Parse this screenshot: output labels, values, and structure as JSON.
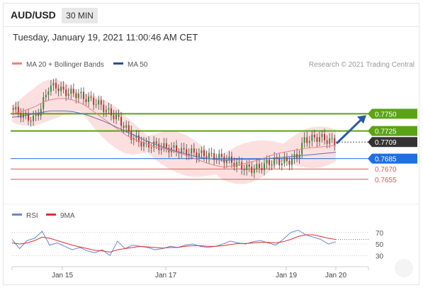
{
  "header": {
    "symbol": "AUD/USD",
    "timeframe": "30 MIN",
    "datetime": "Tuesday, January 19, 2021 11:00:46 AM CET"
  },
  "legend": {
    "ma20_bb": "MA 20 + Bollinger Bands",
    "ma50": "MA 50",
    "credit": "Research © 2021 Trading Central",
    "rsi": "RSI",
    "rsi_ma": "9MA"
  },
  "colors": {
    "up_candle": "#2e8b2e",
    "down_candle": "#c62828",
    "bollinger_fill": "#fbd5d5",
    "ma20": "#f08080",
    "ma50": "#5b6fb5",
    "green_level": "#5aa316",
    "blue_level": "#1f6fe0",
    "red_level": "#e05555",
    "arrow": "#2a5aa8",
    "rsi_line": "#6a86d6",
    "rsi_ma_line": "#e03030"
  },
  "chart_data": [
    {
      "type": "candlestick",
      "title": "AUD/USD 30 MIN",
      "x_ticks": [
        "Jan 15",
        "Jan 17",
        "Jan 19",
        "Jan 20"
      ],
      "y_levels": [
        {
          "value": 0.775,
          "label": "0.7750",
          "style": "green-resistance"
        },
        {
          "value": 0.7725,
          "label": "0.7725",
          "style": "green-resistance"
        },
        {
          "value": 0.7709,
          "label": "0.7709",
          "style": "current-price"
        },
        {
          "value": 0.7685,
          "label": "0.7685",
          "style": "blue-pivot"
        },
        {
          "value": 0.767,
          "label": "0.7670",
          "style": "red-support"
        },
        {
          "value": 0.7655,
          "label": "0.7655",
          "style": "red-support"
        }
      ],
      "ylim": [
        0.7625,
        0.7812
      ],
      "close_path": [
        0.7758,
        0.7752,
        0.7745,
        0.7742,
        0.7758,
        0.7788,
        0.779,
        0.7782,
        0.778,
        0.7778,
        0.7772,
        0.7768,
        0.7762,
        0.7752,
        0.7745,
        0.7733,
        0.7718,
        0.771,
        0.7705,
        0.7705,
        0.7702,
        0.77,
        0.7698,
        0.7695,
        0.7694,
        0.7692,
        0.769,
        0.7688,
        0.7686,
        0.7682,
        0.7677,
        0.7672,
        0.767,
        0.7672,
        0.7678,
        0.7682,
        0.768,
        0.7682,
        0.7688,
        0.7712,
        0.7714,
        0.7716,
        0.7712,
        0.7709
      ],
      "series": [
        {
          "name": "MA 20 + Bollinger Bands",
          "role": "ma20",
          "values": [
            0.775,
            0.7752,
            0.7756,
            0.776,
            0.7766,
            0.777,
            0.7772,
            0.7772,
            0.777,
            0.7766,
            0.776,
            0.7752,
            0.7744,
            0.7736,
            0.7728,
            0.772,
            0.7714,
            0.771,
            0.7706,
            0.7702,
            0.77,
            0.7697,
            0.7694,
            0.769,
            0.7686,
            0.7682,
            0.7678,
            0.7675,
            0.7673,
            0.7674,
            0.7676,
            0.7678,
            0.7681,
            0.7684,
            0.7688,
            0.7692,
            0.7694,
            0.7696,
            0.7698,
            0.77,
            0.7701,
            0.7702,
            0.7703,
            0.7704
          ]
        },
        {
          "name": "MA 50",
          "role": "ma50",
          "values": [
            0.7745,
            0.7746,
            0.7748,
            0.775,
            0.7752,
            0.7754,
            0.7754,
            0.7754,
            0.7753,
            0.7751,
            0.7748,
            0.7744,
            0.774,
            0.7735,
            0.773,
            0.7725,
            0.772,
            0.7715,
            0.771,
            0.7706,
            0.7702,
            0.7698,
            0.7695,
            0.7692,
            0.7689,
            0.7687,
            0.7685,
            0.7684,
            0.7683,
            0.7683,
            0.7684,
            0.7684,
            0.7684,
            0.7684,
            0.7685,
            0.7686,
            0.7687,
            0.7688,
            0.7689,
            0.769,
            0.7691,
            0.7692,
            0.7693,
            0.7694
          ]
        }
      ]
    },
    {
      "type": "line",
      "title": "RSI",
      "ylim": [
        18,
        82
      ],
      "y_ticks": [
        70,
        50,
        30
      ],
      "series": [
        {
          "name": "RSI",
          "values": [
            58,
            42,
            56,
            60,
            72,
            48,
            52,
            46,
            40,
            44,
            38,
            35,
            40,
            30,
            55,
            42,
            48,
            46,
            44,
            40,
            42,
            46,
            44,
            48,
            50,
            46,
            44,
            46,
            50,
            55,
            52,
            50,
            54,
            56,
            52,
            48,
            58,
            70,
            74,
            66,
            62,
            58,
            50,
            54
          ]
        },
        {
          "name": "9MA",
          "values": [
            52,
            50,
            52,
            56,
            62,
            60,
            56,
            52,
            48,
            45,
            42,
            39,
            38,
            36,
            40,
            42,
            44,
            46,
            45,
            44,
            43,
            44,
            44,
            46,
            47,
            47,
            46,
            46,
            47,
            49,
            51,
            51,
            52,
            53,
            53,
            52,
            54,
            58,
            63,
            66,
            66,
            63,
            60,
            58
          ]
        }
      ]
    }
  ]
}
